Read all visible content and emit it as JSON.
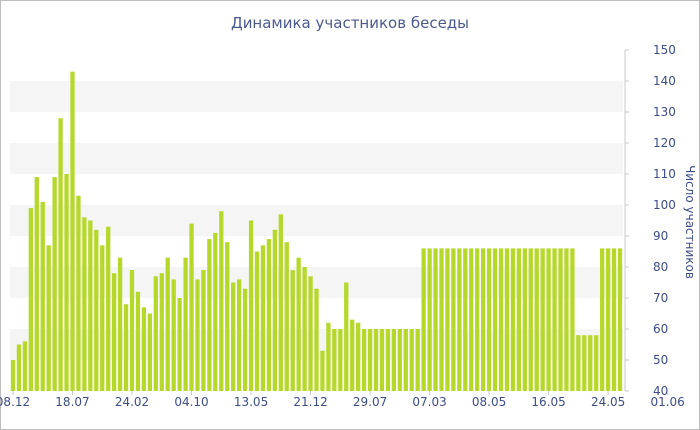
{
  "chart_data": {
    "type": "bar",
    "title": "Динамика участников беседы",
    "xlabel": "",
    "ylabel": "Число участников",
    "ylim": [
      40,
      150
    ],
    "yticks": [
      40,
      50,
      60,
      70,
      80,
      90,
      100,
      110,
      120,
      130,
      140,
      150
    ],
    "xtick_labels": [
      "08.12",
      "18.07",
      "24.02",
      "04.10",
      "13.05",
      "21.12",
      "29.07",
      "07.03",
      "08.05",
      "16.05",
      "24.05",
      "01.06"
    ],
    "xtick_positions": [
      0,
      10,
      20,
      30,
      40,
      50,
      60,
      70,
      80,
      90,
      100,
      110
    ],
    "values": [
      50,
      55,
      56,
      99,
      109,
      101,
      87,
      109,
      128,
      110,
      143,
      103,
      96,
      95,
      92,
      87,
      93,
      78,
      83,
      68,
      79,
      72,
      67,
      65,
      77,
      78,
      83,
      76,
      70,
      83,
      94,
      76,
      79,
      89,
      91,
      98,
      88,
      75,
      76,
      73,
      95,
      85,
      87,
      89,
      92,
      97,
      88,
      79,
      83,
      80,
      77,
      73,
      53,
      62,
      60,
      60,
      75,
      63,
      62,
      60,
      60,
      60,
      60,
      60,
      60,
      60,
      60,
      60,
      60,
      86,
      86,
      86,
      86,
      86,
      86,
      86,
      86,
      86,
      86,
      86,
      86,
      86,
      86,
      86,
      86,
      86,
      86,
      86,
      86,
      86,
      86,
      86,
      86,
      86,
      86,
      58,
      58,
      58,
      58,
      86,
      86,
      86,
      86
    ],
    "bar_color": "#b5d82a",
    "band_color": "#f5f5f5",
    "grid": "horizontal alternating bands",
    "y_axis_side": "right",
    "legend": "none"
  }
}
